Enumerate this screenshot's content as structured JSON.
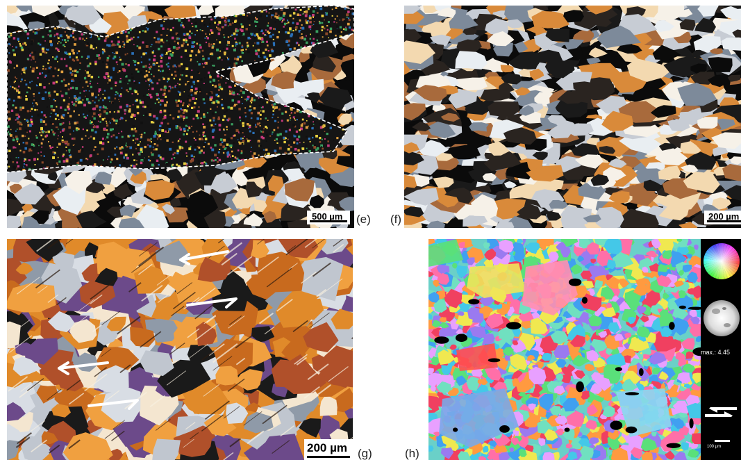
{
  "panels": {
    "e": {
      "label": "(e)",
      "scale_text": "500 µm"
    },
    "f": {
      "label": "(f)",
      "scale_text": "200 µm"
    },
    "g": {
      "label": "(g)",
      "scale_text": "200 µm"
    },
    "h": {
      "label": "(h)",
      "scale_text": "100 µm",
      "max_text": "max.: 4.45"
    }
  },
  "palettes": {
    "crossed_polars": [
      "#0b0b0b",
      "#1a1a1a",
      "#e9eef2",
      "#f3d9b0",
      "#d98a3a",
      "#a86a3c",
      "#c7ccd4",
      "#7d8a9a",
      "#f6f1e8",
      "#2a2420"
    ],
    "fine_matrix": [
      "#e0a040",
      "#2b6fb5",
      "#c43a7a",
      "#3aa060",
      "#e8d040",
      "#101010",
      "#8c4a2a"
    ],
    "ebsd_map": [
      "#44c8e8",
      "#ff6fa8",
      "#f0e850",
      "#5ae07a",
      "#9a7af0",
      "#ff9a40",
      "#40a0f0",
      "#e8a0ff",
      "#70e0c0",
      "#f04060"
    ]
  }
}
